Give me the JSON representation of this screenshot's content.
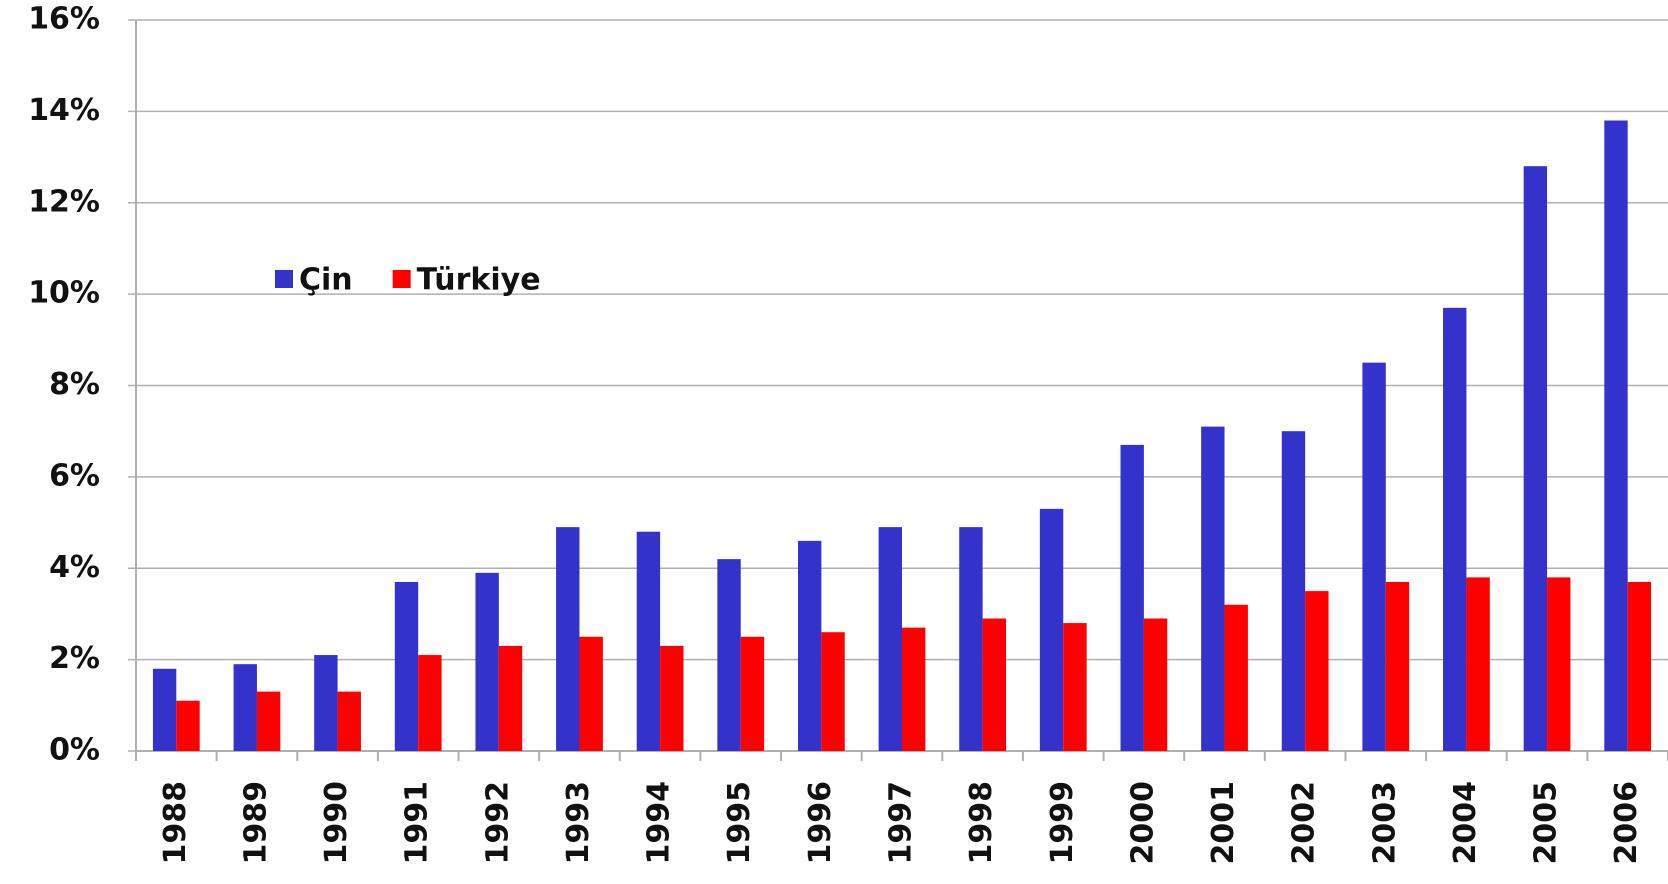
{
  "chart_data": {
    "type": "bar",
    "categories": [
      "1988",
      "1989",
      "1990",
      "1991",
      "1992",
      "1993",
      "1994",
      "1995",
      "1996",
      "1997",
      "1998",
      "1999",
      "2000",
      "2001",
      "2002",
      "2003",
      "2004",
      "2005",
      "2006"
    ],
    "series": [
      {
        "name": "Çin",
        "color": "#3333cc",
        "values": [
          1.8,
          1.9,
          2.1,
          3.7,
          3.9,
          4.9,
          4.8,
          4.2,
          4.6,
          4.9,
          4.9,
          5.3,
          6.7,
          7.1,
          7.0,
          8.5,
          9.7,
          12.8,
          13.8
        ]
      },
      {
        "name": "Türkiye",
        "color": "#ff0000",
        "values": [
          1.1,
          1.3,
          1.3,
          2.1,
          2.3,
          2.5,
          2.3,
          2.5,
          2.6,
          2.7,
          2.9,
          2.8,
          2.9,
          3.2,
          3.5,
          3.7,
          3.8,
          3.8,
          3.7
        ]
      }
    ],
    "ylim": [
      0,
      16
    ],
    "yticks": [
      {
        "value": 0,
        "label": "0%"
      },
      {
        "value": 2,
        "label": "2%"
      },
      {
        "value": 4,
        "label": "4%"
      },
      {
        "value": 6,
        "label": "6%"
      },
      {
        "value": 8,
        "label": "8%"
      },
      {
        "value": 10,
        "label": "10%"
      },
      {
        "value": 12,
        "label": "12%"
      },
      {
        "value": 14,
        "label": "14%"
      },
      {
        "value": 16,
        "label": "16%"
      }
    ],
    "grid": true,
    "legend": "upper left"
  }
}
